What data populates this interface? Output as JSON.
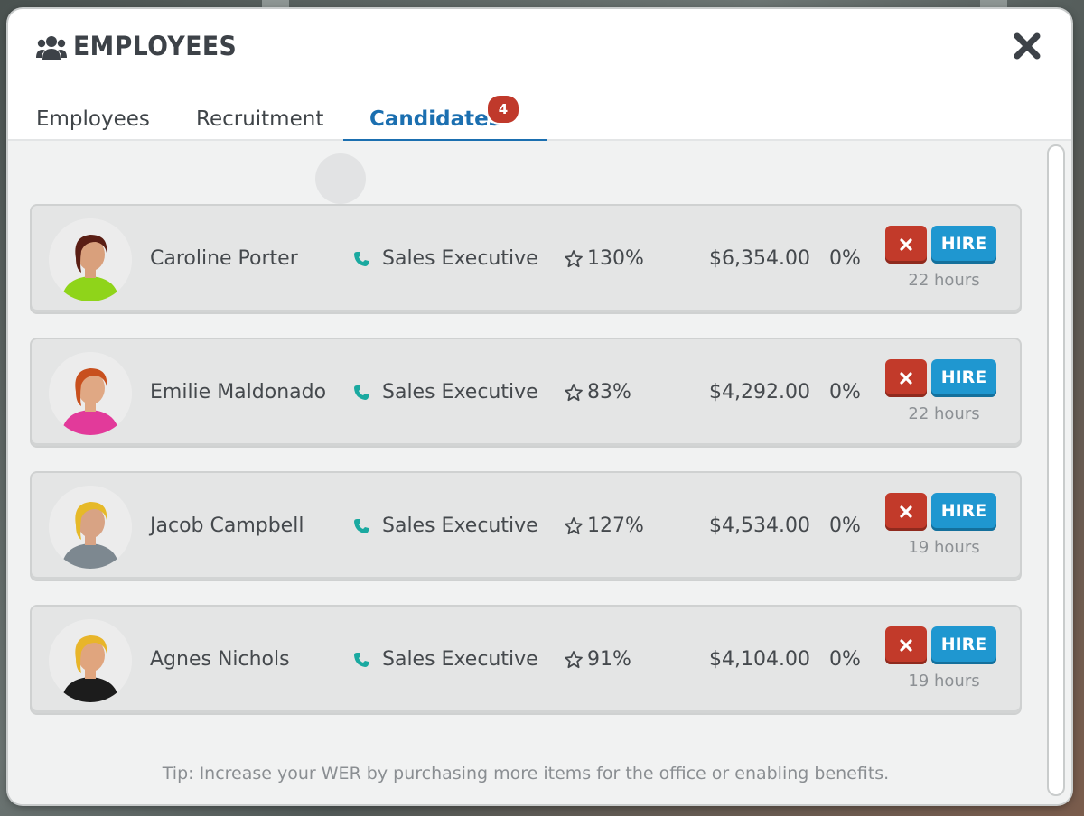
{
  "window": {
    "title": "EMPLOYEES",
    "title_icon": "users-icon",
    "close_icon": "close-icon"
  },
  "tabs": [
    {
      "label": "Employees",
      "active": false
    },
    {
      "label": "Recruitment",
      "active": false
    },
    {
      "label": "Candidates",
      "active": true,
      "badge": "4"
    }
  ],
  "candidates": [
    {
      "name": "Caroline Porter",
      "job": "Sales Executive",
      "skill": "130%",
      "salary": "$6,354.00",
      "percent": "0%",
      "time_left": "22 hours",
      "hire_label": "HIRE",
      "avatar": {
        "hair": "#5a1e14",
        "skin": "#d9a07c",
        "shirt": "#8fd41a"
      }
    },
    {
      "name": "Emilie Maldonado",
      "job": "Sales Executive",
      "skill": "83%",
      "salary": "$4,292.00",
      "percent": "0%",
      "time_left": "22 hours",
      "hire_label": "HIRE",
      "avatar": {
        "hair": "#c8501e",
        "skin": "#e0a884",
        "shirt": "#e23a9a"
      }
    },
    {
      "name": "Jacob Campbell",
      "job": "Sales Executive",
      "skill": "127%",
      "salary": "$4,534.00",
      "percent": "0%",
      "time_left": "19 hours",
      "hire_label": "HIRE",
      "avatar": {
        "hair": "#e6b928",
        "skin": "#d8a384",
        "shirt": "#7d8890"
      }
    },
    {
      "name": "Agnes Nichols",
      "job": "Sales Executive",
      "skill": "91%",
      "salary": "$4,104.00",
      "percent": "0%",
      "time_left": "19 hours",
      "hire_label": "HIRE",
      "avatar": {
        "hair": "#e8b52a",
        "skin": "#e0a57e",
        "shirt": "#1c1c1c"
      }
    }
  ],
  "tip": "Tip: Increase your WER by purchasing more items for the office or enabling benefits.",
  "colors": {
    "accent": "#1b6fb0",
    "hire": "#1f97d0",
    "reject": "#c23a2a",
    "phone_icon": "#1aa9a0",
    "badge": "#c0392b"
  }
}
